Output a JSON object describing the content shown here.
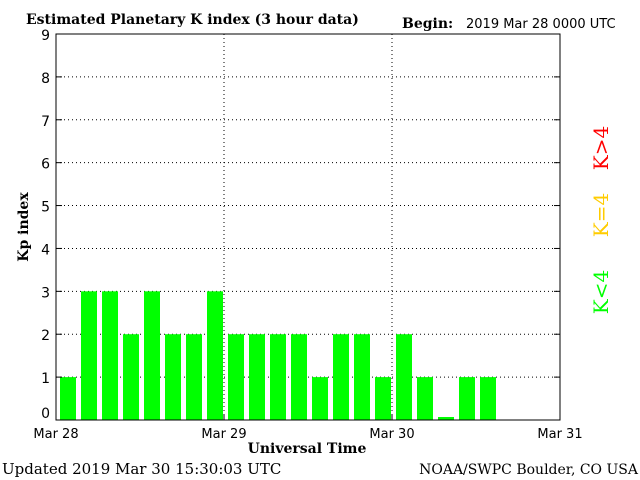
{
  "header": {
    "title": "Estimated Planetary K index (3 hour data)",
    "begin_label": "Begin:",
    "begin_value": "2019 Mar 28 0000 UTC"
  },
  "footer": {
    "updated": "Updated 2019 Mar 30 15:30:03 UTC",
    "source": "NOAA/SWPC Boulder, CO USA"
  },
  "legend": {
    "high": "K>4",
    "equal": "K=4",
    "low": "K<4"
  },
  "colors": {
    "low": "#00ff00",
    "equal": "#ffcc00",
    "high": "#ff0000",
    "axis": "#000000",
    "grid": "#000000"
  },
  "chart_data": {
    "type": "bar",
    "title": "Estimated Planetary K index (3 hour data)",
    "xlabel": "Universal Time",
    "ylabel": "Kp index",
    "ylim": [
      0,
      9
    ],
    "yticks": [
      0,
      1,
      2,
      3,
      4,
      5,
      6,
      7,
      8,
      9
    ],
    "xlim": [
      "2019-03-28 00:00",
      "2019-03-31 00:00"
    ],
    "bar_width_hours": 3,
    "xticks": [
      {
        "hours": 0,
        "label": "Mar 28"
      },
      {
        "hours": 24,
        "label": "Mar 29"
      },
      {
        "hours": 48,
        "label": "Mar 30"
      },
      {
        "hours": 72,
        "label": "Mar 31"
      }
    ],
    "grid": "dotted",
    "categories": [
      "Mar 28 00",
      "Mar 28 03",
      "Mar 28 06",
      "Mar 28 09",
      "Mar 28 12",
      "Mar 28 15",
      "Mar 28 18",
      "Mar 28 21",
      "Mar 29 00",
      "Mar 29 03",
      "Mar 29 06",
      "Mar 29 09",
      "Mar 29 12",
      "Mar 29 15",
      "Mar 29 18",
      "Mar 29 21",
      "Mar 30 00",
      "Mar 30 03",
      "Mar 30 06",
      "Mar 30 09",
      "Mar 30 12"
    ],
    "values": [
      1,
      3,
      3,
      2,
      3,
      2,
      2,
      3,
      2,
      2,
      2,
      2,
      1,
      2,
      2,
      1,
      2,
      1,
      0.07,
      1,
      1
    ]
  }
}
